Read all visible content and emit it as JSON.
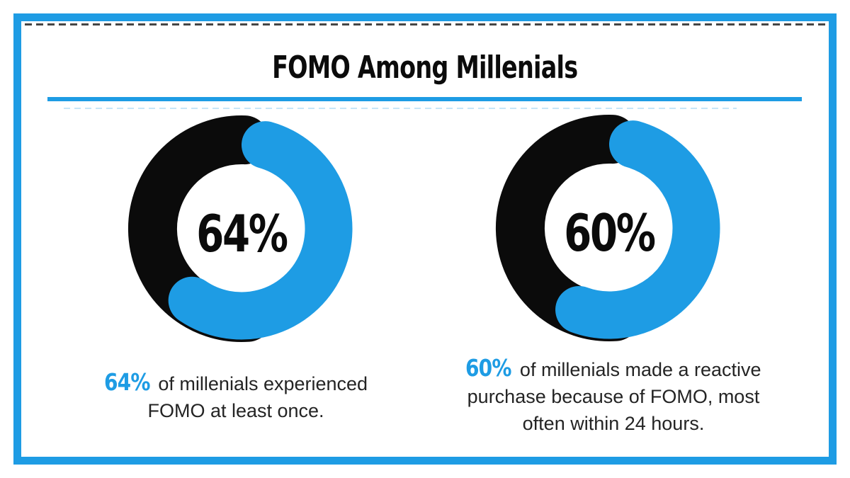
{
  "colors": {
    "accent_blue": "#1E9CE4",
    "ring_black": "#0B0B0B",
    "text": "#242424"
  },
  "title": "FOMO Among Millenials",
  "chart_data": {
    "type": "pie",
    "subtype": "donut",
    "title": "FOMO Among Millenials",
    "legend": false,
    "donuts": [
      {
        "value": 64,
        "remainder": 36,
        "label": "64%",
        "color_value": "#1E9CE4",
        "color_remainder": "#0B0B0B",
        "caption": {
          "highlight": "64%",
          "line1": " of millenials experienced",
          "line2": "FOMO at least once."
        }
      },
      {
        "value": 60,
        "remainder": 40,
        "label": "60%",
        "color_value": "#1E9CE4",
        "color_remainder": "#0B0B0B",
        "caption": {
          "highlight": "60%",
          "line1": " of millenials made a reactive",
          "line2": "purchase because of FOMO, most",
          "line3": "often within 24 hours."
        }
      }
    ]
  }
}
